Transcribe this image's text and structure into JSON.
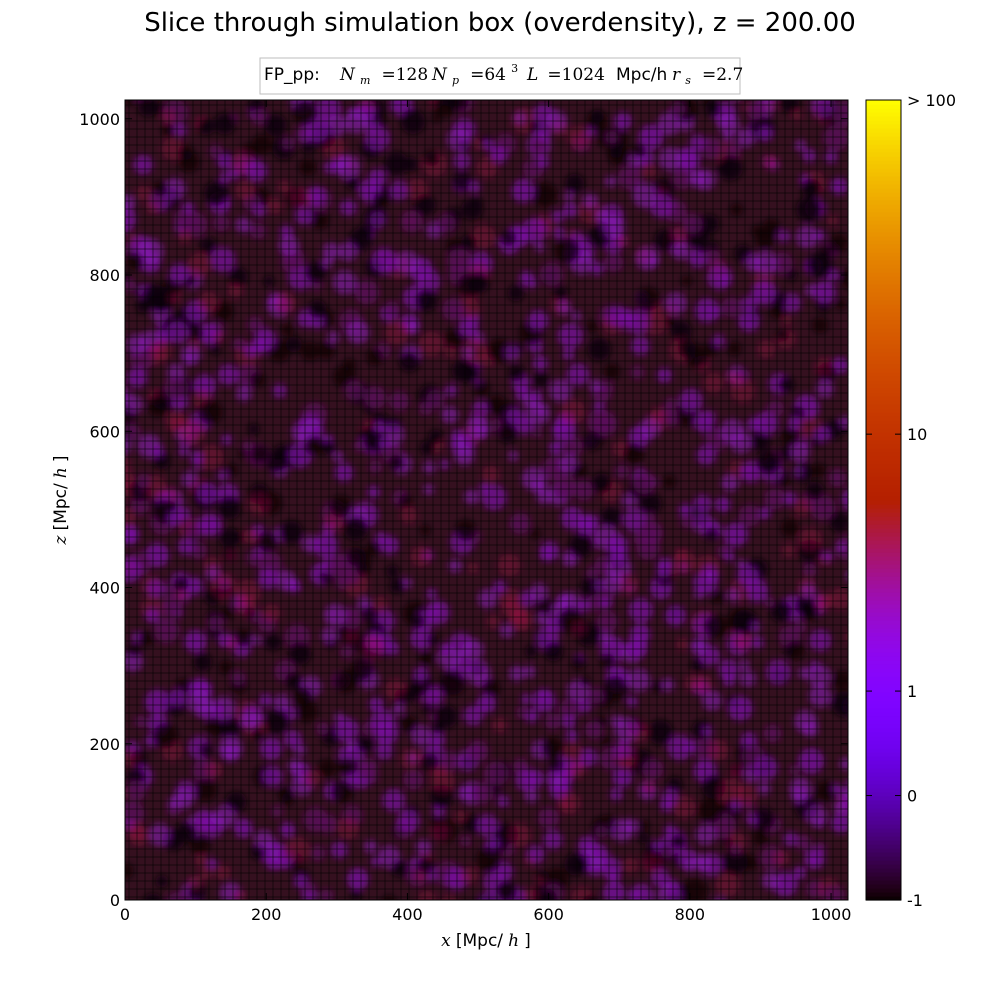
{
  "chart_data": {
    "type": "heatmap",
    "title": "Slice through simulation box (overdensity), z = 200.00",
    "info_box": {
      "label": "FP_pp:",
      "nm_symbol": "N",
      "nm_sub": "m",
      "nm_value": "=128",
      "np_symbol": "N",
      "np_sub": "p",
      "np_value": "=64",
      "np_exp": "3",
      "l_symbol": "L",
      "l_value": "=1024",
      "l_unit": "Mpc/h",
      "rs_symbol": "r",
      "rs_sub": "s",
      "rs_value": "=2.7"
    },
    "xlabel": {
      "var": "x",
      "unit": "[Mpc/",
      "unit_h": "h",
      "close": "]"
    },
    "ylabel": {
      "var": "z",
      "unit": "[Mpc/",
      "unit_h": "h",
      "close": "]"
    },
    "xlim": [
      0,
      1024
    ],
    "ylim": [
      0,
      1024
    ],
    "xticks": [
      0,
      200,
      400,
      600,
      800,
      1000
    ],
    "yticks": [
      0,
      200,
      400,
      600,
      800,
      1000
    ],
    "grid": false,
    "colorbar": {
      "colormap": "gnuplot",
      "scale": "symlog",
      "ticks": [
        {
          "value": -1,
          "label": "-1"
        },
        {
          "value": 0,
          "label": "0"
        },
        {
          "value": 1,
          "label": "1"
        },
        {
          "value": 10,
          "label": "10"
        },
        {
          "value": 100,
          "label": "> 100"
        }
      ],
      "range": [
        -1,
        100
      ]
    },
    "field_colors": {
      "background": "#35101f",
      "void": "#0b0008",
      "filament": "#5a0a5a",
      "overdense": "#7a13a3",
      "peak": "#8e1cbf",
      "hot": "#a8124a"
    }
  }
}
